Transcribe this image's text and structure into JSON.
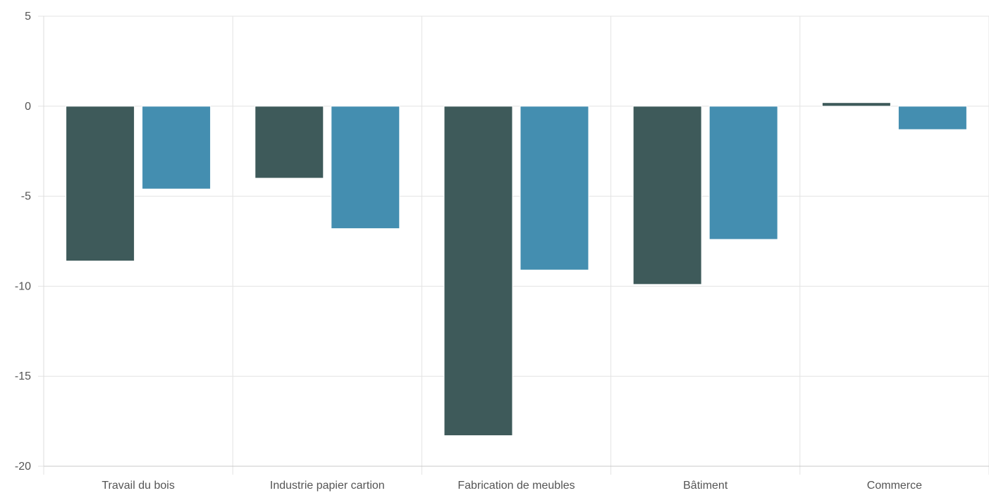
{
  "chart_data": {
    "type": "bar",
    "title": "",
    "xlabel": "",
    "ylabel": "",
    "ylim": [
      -20,
      5
    ],
    "yticks": [
      5,
      0,
      -5,
      -10,
      -15,
      -20
    ],
    "grid": true,
    "categories": [
      "Travail du bois",
      "Industrie papier cartion",
      "Fabrication de meubles",
      "Bâtiment",
      "Commerce"
    ],
    "series": [
      {
        "values": [
          -8.6,
          -4.0,
          -18.3,
          -9.9,
          0.2
        ],
        "color": "#3e5a5a"
      },
      {
        "values": [
          -4.6,
          -6.8,
          -9.1,
          -7.4,
          -1.3
        ],
        "color": "#448eb0"
      }
    ]
  }
}
